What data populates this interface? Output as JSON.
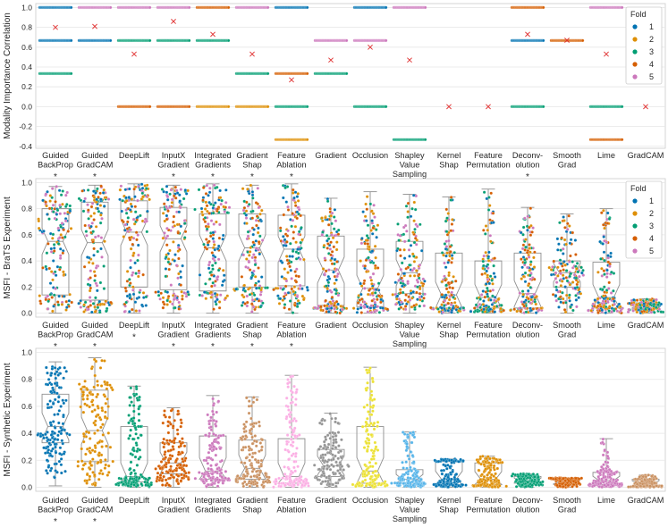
{
  "fold_colors": [
    "#0173b2",
    "#de8f05",
    "#029e73",
    "#d55e00",
    "#cc78bc"
  ],
  "method_colors": [
    "#0173b2",
    "#de8f05",
    "#029e73",
    "#d55e00",
    "#cc78bc",
    "#ca9161",
    "#fbafe4",
    "#949494",
    "#ece133",
    "#56b4e9",
    "#0173b2",
    "#de8f05",
    "#029e73",
    "#d55e00",
    "#cc78bc",
    "#ca9161"
  ],
  "chart_data": [
    {
      "type": "strip",
      "ylabel": "Modality Importance Correlation",
      "ylim": [
        -0.42,
        1.04
      ],
      "yticks": [
        "1.0",
        "0.8",
        "0.6",
        "0.4",
        "0.2",
        "0.0",
        "-0.2",
        "-0.4"
      ],
      "ytick_values": [
        1.0,
        0.8,
        0.6,
        0.4,
        0.2,
        0.0,
        -0.2,
        -0.4
      ],
      "categories": [
        "Guided BackProp",
        "Guided GradCAM",
        "DeepLift",
        "InputX Gradient",
        "Integrated Gradients",
        "Gradient Shap",
        "Feature Ablation",
        "Gradient",
        "Occlusion",
        "Shapley Value Sampling",
        "Kernel Shap",
        "Feature Permutation",
        "Deconv-olution",
        "Smooth Grad",
        "Lime",
        "GradCAM"
      ],
      "xtick_lines": [
        [
          "Guided",
          "BackProp",
          "*"
        ],
        [
          "Guided",
          "GradCAM",
          "*"
        ],
        [
          "DeepLift",
          "",
          ""
        ],
        [
          "InputX",
          "Gradient",
          "*"
        ],
        [
          "Integrated",
          "Gradients",
          "*"
        ],
        [
          "Gradient",
          "Shap",
          "*"
        ],
        [
          "Feature",
          "Ablation",
          "*"
        ],
        [
          "Gradient",
          "",
          ""
        ],
        [
          "Occlusion",
          "",
          ""
        ],
        [
          "Shapley",
          "Value",
          "Sampling"
        ],
        [
          "Kernel",
          "Shap",
          ""
        ],
        [
          "Feature",
          "Permutation",
          ""
        ],
        [
          "Deconv-",
          "olution",
          "*"
        ],
        [
          "Smooth",
          "Grad",
          ""
        ],
        [
          "Lime",
          "",
          ""
        ],
        [
          "GradCAM",
          "",
          ""
        ]
      ],
      "levels": [
        [
          [
            1.0,
            0
          ],
          [
            0.667,
            0
          ],
          [
            0.333,
            2
          ]
        ],
        [
          [
            1.0,
            4
          ],
          [
            0.667,
            0
          ]
        ],
        [
          [
            1.0,
            4
          ],
          [
            0.667,
            2
          ],
          [
            0.0,
            3
          ]
        ],
        [
          [
            1.0,
            4
          ],
          [
            0.667,
            2
          ],
          [
            0.0,
            3
          ]
        ],
        [
          [
            1.0,
            3
          ],
          [
            0.667,
            2
          ],
          [
            0.0,
            1
          ]
        ],
        [
          [
            1.0,
            4
          ],
          [
            0.333,
            2
          ],
          [
            0.0,
            1
          ]
        ],
        [
          [
            1.0,
            0
          ],
          [
            0.333,
            3
          ],
          [
            0.0,
            2
          ],
          [
            -0.333,
            1
          ]
        ],
        [
          [
            0.667,
            4
          ],
          [
            0.333,
            2
          ]
        ],
        [
          [
            1.0,
            0
          ],
          [
            0.667,
            4
          ],
          [
            0.0,
            2
          ]
        ],
        [
          [
            1.0,
            4
          ],
          [
            -0.333,
            2
          ]
        ],
        [],
        [],
        [
          [
            1.0,
            3
          ],
          [
            0.667,
            0
          ],
          [
            0.0,
            2
          ]
        ],
        [
          [
            0.667,
            3
          ]
        ],
        [
          [
            1.0,
            4
          ],
          [
            0.0,
            2
          ],
          [
            -0.333,
            3
          ]
        ],
        []
      ],
      "means": [
        0.8,
        0.81,
        0.53,
        0.86,
        0.73,
        0.53,
        0.27,
        0.47,
        0.6,
        0.47,
        0.0,
        0.0,
        0.73,
        0.67,
        0.53,
        0.0
      ],
      "legend": {
        "title": "Fold",
        "labels": [
          "1",
          "2",
          "3",
          "4",
          "5"
        ],
        "position": "top-right"
      }
    },
    {
      "type": "box+swarm",
      "ylabel": "MSFI - BraTS Experiment",
      "ylim": [
        -0.03,
        1.03
      ],
      "yticks": [
        "1.0",
        "0.8",
        "0.6",
        "0.4",
        "0.2",
        "0.0"
      ],
      "ytick_values": [
        1.0,
        0.8,
        0.6,
        0.4,
        0.2,
        0.0
      ],
      "categories": [
        "Guided BackProp",
        "Guided GradCAM",
        "DeepLift",
        "InputX Gradient",
        "Integrated Gradients",
        "Gradient Shap",
        "Feature Ablation",
        "Gradient",
        "Occlusion",
        "Shapley Value Sampling",
        "Kernel Shap",
        "Feature Permutation",
        "Deconv-olution",
        "Smooth Grad",
        "Lime",
        "GradCAM"
      ],
      "xtick_lines": [
        [
          "Guided",
          "BackProp",
          "*"
        ],
        [
          "Guided",
          "GradCAM",
          "*"
        ],
        [
          "DeepLift",
          "*",
          ""
        ],
        [
          "InputX",
          "Gradient",
          "*"
        ],
        [
          "Integrated",
          "Gradients",
          "*"
        ],
        [
          "Gradient",
          "Shap",
          "*"
        ],
        [
          "Feature",
          "Ablation",
          "*"
        ],
        [
          "Gradient",
          "",
          ""
        ],
        [
          "Occlusion",
          "",
          ""
        ],
        [
          "Shapley",
          "Value",
          "Sampling"
        ],
        [
          "Kernel",
          "Shap",
          ""
        ],
        [
          "Feature",
          "Permutation",
          ""
        ],
        [
          "Deconv-",
          "olution",
          ""
        ],
        [
          "Smooth",
          "Grad",
          ""
        ],
        [
          "Lime",
          "",
          ""
        ],
        [
          "GradCAM",
          "",
          ""
        ]
      ],
      "box_stats": [
        [
          0.14,
          0.55,
          0.8,
          0.0,
          0.97
        ],
        [
          0.1,
          0.54,
          0.85,
          0.0,
          0.98
        ],
        [
          0.2,
          0.62,
          0.86,
          0.0,
          0.99
        ],
        [
          0.18,
          0.57,
          0.81,
          0.0,
          0.98
        ],
        [
          0.17,
          0.5,
          0.76,
          0.0,
          0.99
        ],
        [
          0.2,
          0.5,
          0.76,
          0.0,
          0.98
        ],
        [
          0.21,
          0.49,
          0.75,
          0.0,
          0.99
        ],
        [
          0.06,
          0.33,
          0.59,
          0.0,
          0.88
        ],
        [
          0.05,
          0.19,
          0.49,
          0.0,
          0.93
        ],
        [
          0.15,
          0.31,
          0.55,
          0.0,
          0.91
        ],
        [
          0.04,
          0.14,
          0.46,
          0.0,
          0.89
        ],
        [
          0.04,
          0.12,
          0.4,
          0.0,
          0.95
        ],
        [
          0.04,
          0.15,
          0.46,
          0.0,
          0.81
        ],
        [
          0.2,
          0.31,
          0.4,
          0.0,
          0.76
        ],
        [
          0.04,
          0.12,
          0.39,
          0.0,
          0.8
        ],
        [
          0.03,
          0.06,
          0.08,
          0.0,
          0.11
        ]
      ],
      "legend": {
        "title": "Fold",
        "labels": [
          "1",
          "2",
          "3",
          "4",
          "5"
        ],
        "position": "top-right"
      }
    },
    {
      "type": "box+swarm",
      "ylabel": "MSFI - Synthetic Experiment",
      "ylim": [
        -0.03,
        1.03
      ],
      "yticks": [
        "1.0",
        "0.8",
        "0.6",
        "0.4",
        "0.2",
        "0.0"
      ],
      "ytick_values": [
        1.0,
        0.8,
        0.6,
        0.4,
        0.2,
        0.0
      ],
      "categories": [
        "Guided BackProp",
        "Guided GradCAM",
        "DeepLift",
        "InputX Gradient",
        "Integrated Gradients",
        "Gradient Shap",
        "Feature Ablation",
        "Gradient",
        "Occlusion",
        "Shapley Value Sampling",
        "Kernel Shap",
        "Feature Permutation",
        "Deconv-olution",
        "Smooth Grad",
        "Lime",
        "GradCAM"
      ],
      "xtick_lines": [
        [
          "Guided",
          "BackProp",
          "*"
        ],
        [
          "Guided",
          "GradCAM",
          "*"
        ],
        [
          "DeepLift",
          "",
          ""
        ],
        [
          "InputX",
          "Gradient",
          ""
        ],
        [
          "Integrated",
          "Gradients",
          ""
        ],
        [
          "Gradient",
          "Shap",
          ""
        ],
        [
          "Feature",
          "Ablation",
          ""
        ],
        [
          "Gradient",
          "",
          ""
        ],
        [
          "Occlusion",
          "",
          ""
        ],
        [
          "Shapley",
          "Value",
          "Sampling"
        ],
        [
          "Kernel",
          "Shap",
          ""
        ],
        [
          "Feature",
          "Permutation",
          ""
        ],
        [
          "Deconv-",
          "olution",
          ""
        ],
        [
          "Smooth",
          "Grad",
          ""
        ],
        [
          "Lime",
          "",
          ""
        ],
        [
          "GradCAM",
          "",
          ""
        ]
      ],
      "box_stats": [
        [
          0.33,
          0.45,
          0.69,
          0.01,
          0.93
        ],
        [
          0.19,
          0.42,
          0.72,
          0.0,
          0.96
        ],
        [
          0.04,
          0.08,
          0.45,
          0.0,
          0.75
        ],
        [
          0.1,
          0.18,
          0.33,
          0.0,
          0.59
        ],
        [
          0.06,
          0.12,
          0.38,
          0.0,
          0.68
        ],
        [
          0.06,
          0.14,
          0.35,
          0.0,
          0.67
        ],
        [
          0.03,
          0.08,
          0.36,
          0.0,
          0.83
        ],
        [
          0.08,
          0.16,
          0.28,
          0.0,
          0.55
        ],
        [
          0.03,
          0.12,
          0.45,
          0.0,
          0.89
        ],
        [
          0.03,
          0.06,
          0.13,
          0.0,
          0.41
        ],
        [
          0.02,
          0.06,
          0.19,
          0.0,
          0.21
        ],
        [
          0.02,
          0.06,
          0.18,
          0.0,
          0.23
        ],
        [
          0.03,
          0.05,
          0.08,
          0.0,
          0.1
        ],
        [
          0.02,
          0.04,
          0.06,
          0.0,
          0.07
        ],
        [
          0.02,
          0.05,
          0.11,
          0.0,
          0.36
        ],
        [
          0.01,
          0.03,
          0.06,
          0.0,
          0.09
        ]
      ]
    }
  ]
}
